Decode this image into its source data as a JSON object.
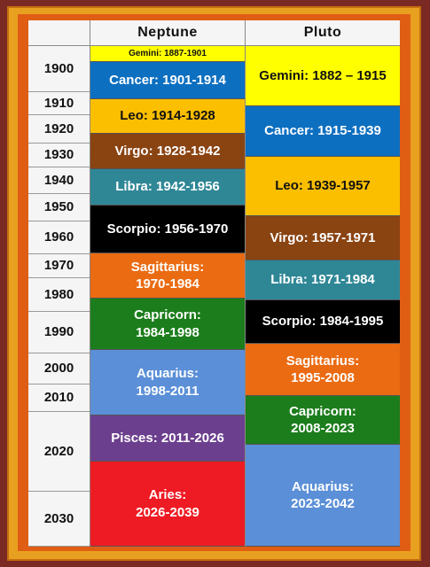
{
  "headers": {
    "years": "",
    "neptune": "Neptune",
    "pluto": "Pluto"
  },
  "years": [
    "1900",
    "1910",
    "1920",
    "1930",
    "1940",
    "1950",
    "1960",
    "1970",
    "1980",
    "1990",
    "2000",
    "2010",
    "2020",
    "2030"
  ],
  "neptune": [
    {
      "label": "Gemini:  1887-1901",
      "color": "#ffff00"
    },
    {
      "label": "Cancer: 1901-1914",
      "color": "#0d6fc0"
    },
    {
      "label": "Leo:  1914-1928",
      "color": "#fbbf00"
    },
    {
      "label": "Virgo:  1928-1942",
      "color": "#8a4412"
    },
    {
      "label": "Libra:  1942-1956",
      "color": "#2f8796"
    },
    {
      "label": "Scorpio:  1956-1970",
      "color": "#000000"
    },
    {
      "label": "Sagittarius:\n1970-1984",
      "color": "#ea6b12"
    },
    {
      "label": "Capricorn:\n1984-1998",
      "color": "#1c7d1c"
    },
    {
      "label": "Aquarius:\n1998-2011",
      "color": "#5b8fd7"
    },
    {
      "label": "Pisces:  2011-2026",
      "color": "#6c3f8e"
    },
    {
      "label": "Aries:\n2026-2039",
      "color": "#ee1b24"
    }
  ],
  "pluto": [
    {
      "label": "Gemini: 1882 – 1915",
      "color": "#ffff00"
    },
    {
      "label": "Cancer:  1915-1939",
      "color": "#0d6fc0"
    },
    {
      "label": "Leo:  1939-1957",
      "color": "#fbbf00"
    },
    {
      "label": "Virgo:  1957-1971",
      "color": "#8a4412"
    },
    {
      "label": "Libra:  1971-1984",
      "color": "#2f8796"
    },
    {
      "label": "Scorpio:  1984-1995",
      "color": "#000000"
    },
    {
      "label": "Sagittarius:\n1995-2008",
      "color": "#ea6b12"
    },
    {
      "label": "Capricorn:\n2008-2023",
      "color": "#1c7d1c"
    },
    {
      "label": "Aquarius:\n2023-2042",
      "color": "#5b8fd7"
    }
  ]
}
